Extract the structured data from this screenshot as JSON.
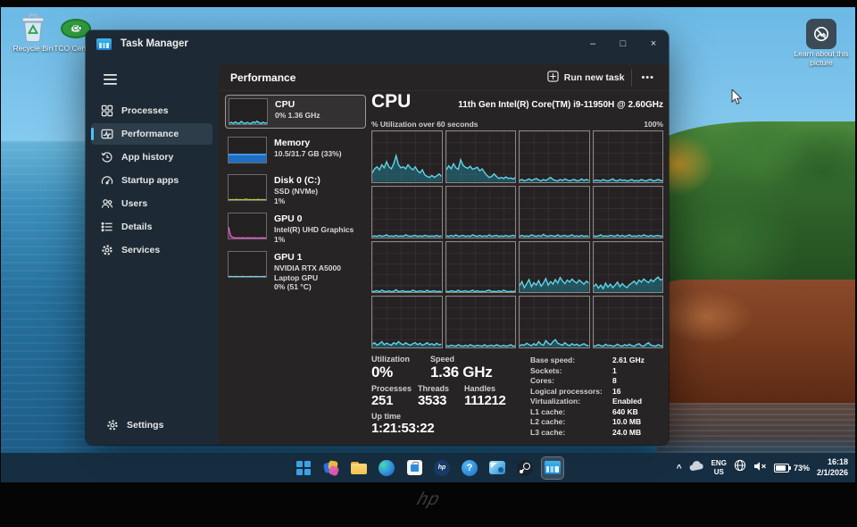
{
  "colors": {
    "accent": "#4cc2ff",
    "graph_line": "#5fd4e8",
    "graph_fill": "rgba(34,142,166,0.45)",
    "window_bg": "#1d2a35",
    "panel_bg": "#272425",
    "taskbar_bg": "#162a3c",
    "memory_bar": "#1f6ec0",
    "disk_line": "#b8c848",
    "gpu0_line": "#e85ad0",
    "gpu1_line": "#5fd4e8"
  },
  "desktop": {
    "icons": [
      {
        "label": "Recycle Bin"
      },
      {
        "label": "TCO Certifi..."
      },
      {
        "label": "Learn about this picture"
      }
    ]
  },
  "window": {
    "title": "Task Manager",
    "controls": {
      "minimize": "–",
      "maximize": "□",
      "close": "×"
    },
    "sidebar": {
      "items": [
        {
          "label": "Processes"
        },
        {
          "label": "Performance"
        },
        {
          "label": "App history"
        },
        {
          "label": "Startup apps"
        },
        {
          "label": "Users"
        },
        {
          "label": "Details"
        },
        {
          "label": "Services"
        }
      ],
      "settings_label": "Settings"
    },
    "header": {
      "title": "Performance",
      "run_new_task": "Run new task",
      "more": "•••"
    },
    "device_list": [
      {
        "name": "CPU",
        "line2": "0%  1.36 GHz",
        "line3": ""
      },
      {
        "name": "Memory",
        "line2": "10.5/31.7 GB (33%)",
        "line3": ""
      },
      {
        "name": "Disk 0 (C:)",
        "line2": "SSD (NVMe)",
        "line3": "1%"
      },
      {
        "name": "GPU 0",
        "line2": "Intel(R) UHD Graphics",
        "line3": "1%"
      },
      {
        "name": "GPU 1",
        "line2": "NVIDIA RTX A5000 Laptop GPU",
        "line3": "0% (51 °C)"
      }
    ],
    "cpu": {
      "title": "CPU",
      "subtitle": "11th Gen Intel(R) Core(TM) i9-11950H @ 2.60GHz",
      "graph_label": "% Utilization over 60 seconds",
      "graph_max": "100%",
      "stats_left": [
        {
          "label": "Utilization",
          "value": "0%"
        },
        {
          "label": "Speed",
          "value": "1.36 GHz"
        },
        {
          "label": "Processes",
          "value": "251"
        },
        {
          "label": "Threads",
          "value": "3533"
        },
        {
          "label": "Handles",
          "value": "111212"
        },
        {
          "label": "Up time",
          "value": "1:21:53:22"
        }
      ],
      "stats_right": [
        {
          "label": "Base speed:",
          "value": "2.61 GHz"
        },
        {
          "label": "Sockets:",
          "value": "1"
        },
        {
          "label": "Cores:",
          "value": "8"
        },
        {
          "label": "Logical processors:",
          "value": "16"
        },
        {
          "label": "Virtualization:",
          "value": "Enabled"
        },
        {
          "label": "L1 cache:",
          "value": "640 KB"
        },
        {
          "label": "L2 cache:",
          "value": "10.0 MB"
        },
        {
          "label": "L3 cache:",
          "value": "24.0 MB"
        }
      ]
    }
  },
  "taskbar": {
    "apps": [
      "start",
      "photos",
      "file-explorer",
      "edge",
      "microsoft-store",
      "hp",
      "get-help",
      "mail",
      "steam",
      "task-manager"
    ],
    "tray": {
      "chevron": "^",
      "language_line1": "ENG",
      "language_line2": "US",
      "battery": "73%",
      "time": "16:18",
      "date": "2/1/2026"
    }
  },
  "bezel": {
    "logo": "hp"
  },
  "chart_data": {
    "type": "line",
    "title": "CPU % Utilization over 60 seconds — 16 logical processors",
    "ylabel": "% Utilization",
    "ylim": [
      0,
      100
    ],
    "x_range_seconds": 60,
    "grid": true,
    "cells": [
      {
        "values": [
          18,
          26,
          30,
          24,
          34,
          28,
          40,
          30,
          26,
          36,
          52,
          34,
          28,
          30,
          26,
          34,
          28,
          24,
          30,
          22,
          18,
          24,
          14,
          11,
          9,
          13,
          9,
          12,
          16,
          11
        ]
      },
      {
        "values": [
          24,
          32,
          26,
          36,
          28,
          25,
          44,
          33,
          29,
          27,
          31,
          25,
          27,
          29,
          22,
          26,
          19,
          13,
          9,
          11,
          16,
          11,
          7,
          9,
          7,
          10,
          7,
          8,
          6,
          9
        ]
      },
      {
        "values": [
          3,
          5,
          2,
          4,
          6,
          3,
          5,
          7,
          4,
          2,
          5,
          3,
          6,
          9,
          5,
          3,
          2,
          5,
          3,
          6,
          4,
          2,
          4,
          5,
          2,
          3,
          6,
          3,
          5,
          3
        ]
      },
      {
        "values": [
          2,
          4,
          3,
          2,
          5,
          3,
          2,
          4,
          6,
          3,
          2,
          5,
          3,
          4,
          2,
          3,
          5,
          2,
          3,
          2,
          5,
          3,
          2,
          4,
          5,
          2,
          3,
          5,
          3,
          2
        ]
      },
      {
        "values": [
          2,
          3,
          2,
          4,
          2,
          3,
          5,
          2,
          3,
          2,
          4,
          2,
          3,
          2,
          5,
          3,
          2,
          3,
          4,
          2,
          3,
          2,
          4,
          3,
          2,
          3,
          2,
          4,
          2,
          3
        ]
      },
      {
        "values": [
          3,
          2,
          4,
          2,
          5,
          2,
          3,
          4,
          2,
          3,
          2,
          5,
          3,
          2,
          4,
          2,
          3,
          2,
          5,
          2,
          3,
          4,
          2,
          3,
          2,
          4,
          2,
          3,
          4,
          2
        ]
      },
      {
        "values": [
          2,
          4,
          2,
          3,
          2,
          5,
          3,
          2,
          4,
          2,
          6,
          3,
          2,
          4,
          3,
          2,
          5,
          2,
          3,
          4,
          2,
          3,
          5,
          2,
          3,
          2,
          4,
          2,
          3,
          2
        ]
      },
      {
        "values": [
          3,
          2,
          3,
          5,
          2,
          3,
          2,
          4,
          3,
          2,
          5,
          2,
          4,
          2,
          3,
          5,
          2,
          3,
          2,
          4,
          2,
          5,
          3,
          2,
          4,
          2,
          3,
          4,
          2,
          3
        ]
      },
      {
        "values": [
          2,
          3,
          4,
          2,
          5,
          3,
          2,
          4,
          2,
          3,
          6,
          2,
          3,
          4,
          2,
          3,
          2,
          5,
          3,
          2,
          4,
          3,
          2,
          5,
          2,
          3,
          4,
          2,
          3,
          2
        ]
      },
      {
        "values": [
          3,
          2,
          4,
          3,
          2,
          5,
          2,
          3,
          4,
          2,
          3,
          5,
          2,
          4,
          2,
          3,
          2,
          4,
          5,
          2,
          3,
          2,
          4,
          2,
          5,
          3,
          2,
          3,
          2,
          4
        ]
      },
      {
        "values": [
          14,
          22,
          10,
          18,
          26,
          12,
          20,
          15,
          24,
          13,
          19,
          28,
          15,
          22,
          17,
          26,
          19,
          30,
          23,
          18,
          25,
          21,
          27,
          22,
          19,
          25,
          21,
          17,
          23,
          19
        ]
      },
      {
        "values": [
          12,
          17,
          9,
          15,
          8,
          19,
          11,
          17,
          10,
          15,
          21,
          12,
          18,
          13,
          10,
          16,
          19,
          23,
          17,
          25,
          21,
          27,
          23,
          20,
          26,
          22,
          27,
          31,
          25,
          27
        ]
      },
      {
        "values": [
          6,
          9,
          4,
          7,
          11,
          5,
          8,
          6,
          4,
          9,
          6,
          11,
          7,
          5,
          9,
          6,
          4,
          7,
          9,
          5,
          8,
          4,
          6,
          9,
          5,
          7,
          4,
          8,
          5,
          6
        ]
      },
      {
        "values": [
          3,
          2,
          4,
          3,
          2,
          5,
          3,
          2,
          4,
          2,
          5,
          3,
          2,
          4,
          3,
          2,
          5,
          2,
          3,
          4,
          2,
          5,
          3,
          2,
          4,
          2,
          3,
          5,
          2,
          3
        ]
      },
      {
        "values": [
          3,
          5,
          4,
          8,
          5,
          3,
          7,
          4,
          11,
          6,
          4,
          13,
          8,
          5,
          11,
          15,
          8,
          6,
          4,
          9,
          5,
          3,
          7,
          4,
          6,
          3,
          5,
          7,
          4,
          3
        ]
      },
      {
        "values": [
          2,
          3,
          5,
          3,
          2,
          6,
          3,
          4,
          2,
          3,
          6,
          3,
          2,
          5,
          3,
          6,
          3,
          2,
          5,
          7,
          3,
          2,
          6,
          9,
          4,
          3,
          2,
          5,
          3,
          2
        ]
      }
    ],
    "thumbs": {
      "cpu": {
        "color": "#5fd4e8",
        "fill": "rgba(34,142,166,0.5)",
        "values": [
          4,
          7,
          3,
          9,
          4,
          3,
          11,
          5,
          3,
          7,
          4,
          2,
          9,
          5,
          12,
          6,
          3,
          8,
          4,
          6
        ]
      },
      "memory_used_percent": 33,
      "disk": {
        "color": "#b8c848",
        "fill": "rgba(150,160,50,0.4)",
        "values": [
          2,
          1,
          2,
          1,
          3,
          1,
          2,
          1,
          2,
          4,
          1,
          2,
          1,
          2,
          1,
          3,
          1,
          2,
          1,
          2
        ]
      },
      "gpu0": {
        "color": "#e85ad0",
        "fill": "rgba(200,60,170,0.4)",
        "values": [
          46,
          12,
          5,
          3,
          2,
          3,
          2,
          3,
          2,
          2,
          3,
          2,
          2,
          3,
          2,
          2,
          2,
          3,
          2,
          2
        ]
      },
      "gpu1": {
        "color": "#5fd4e8",
        "fill": "rgba(34,142,166,0.4)",
        "values": [
          1,
          2,
          1,
          1,
          2,
          1,
          1,
          2,
          1,
          1,
          1,
          2,
          1,
          1,
          2,
          1,
          1,
          1,
          2,
          1
        ]
      }
    }
  }
}
